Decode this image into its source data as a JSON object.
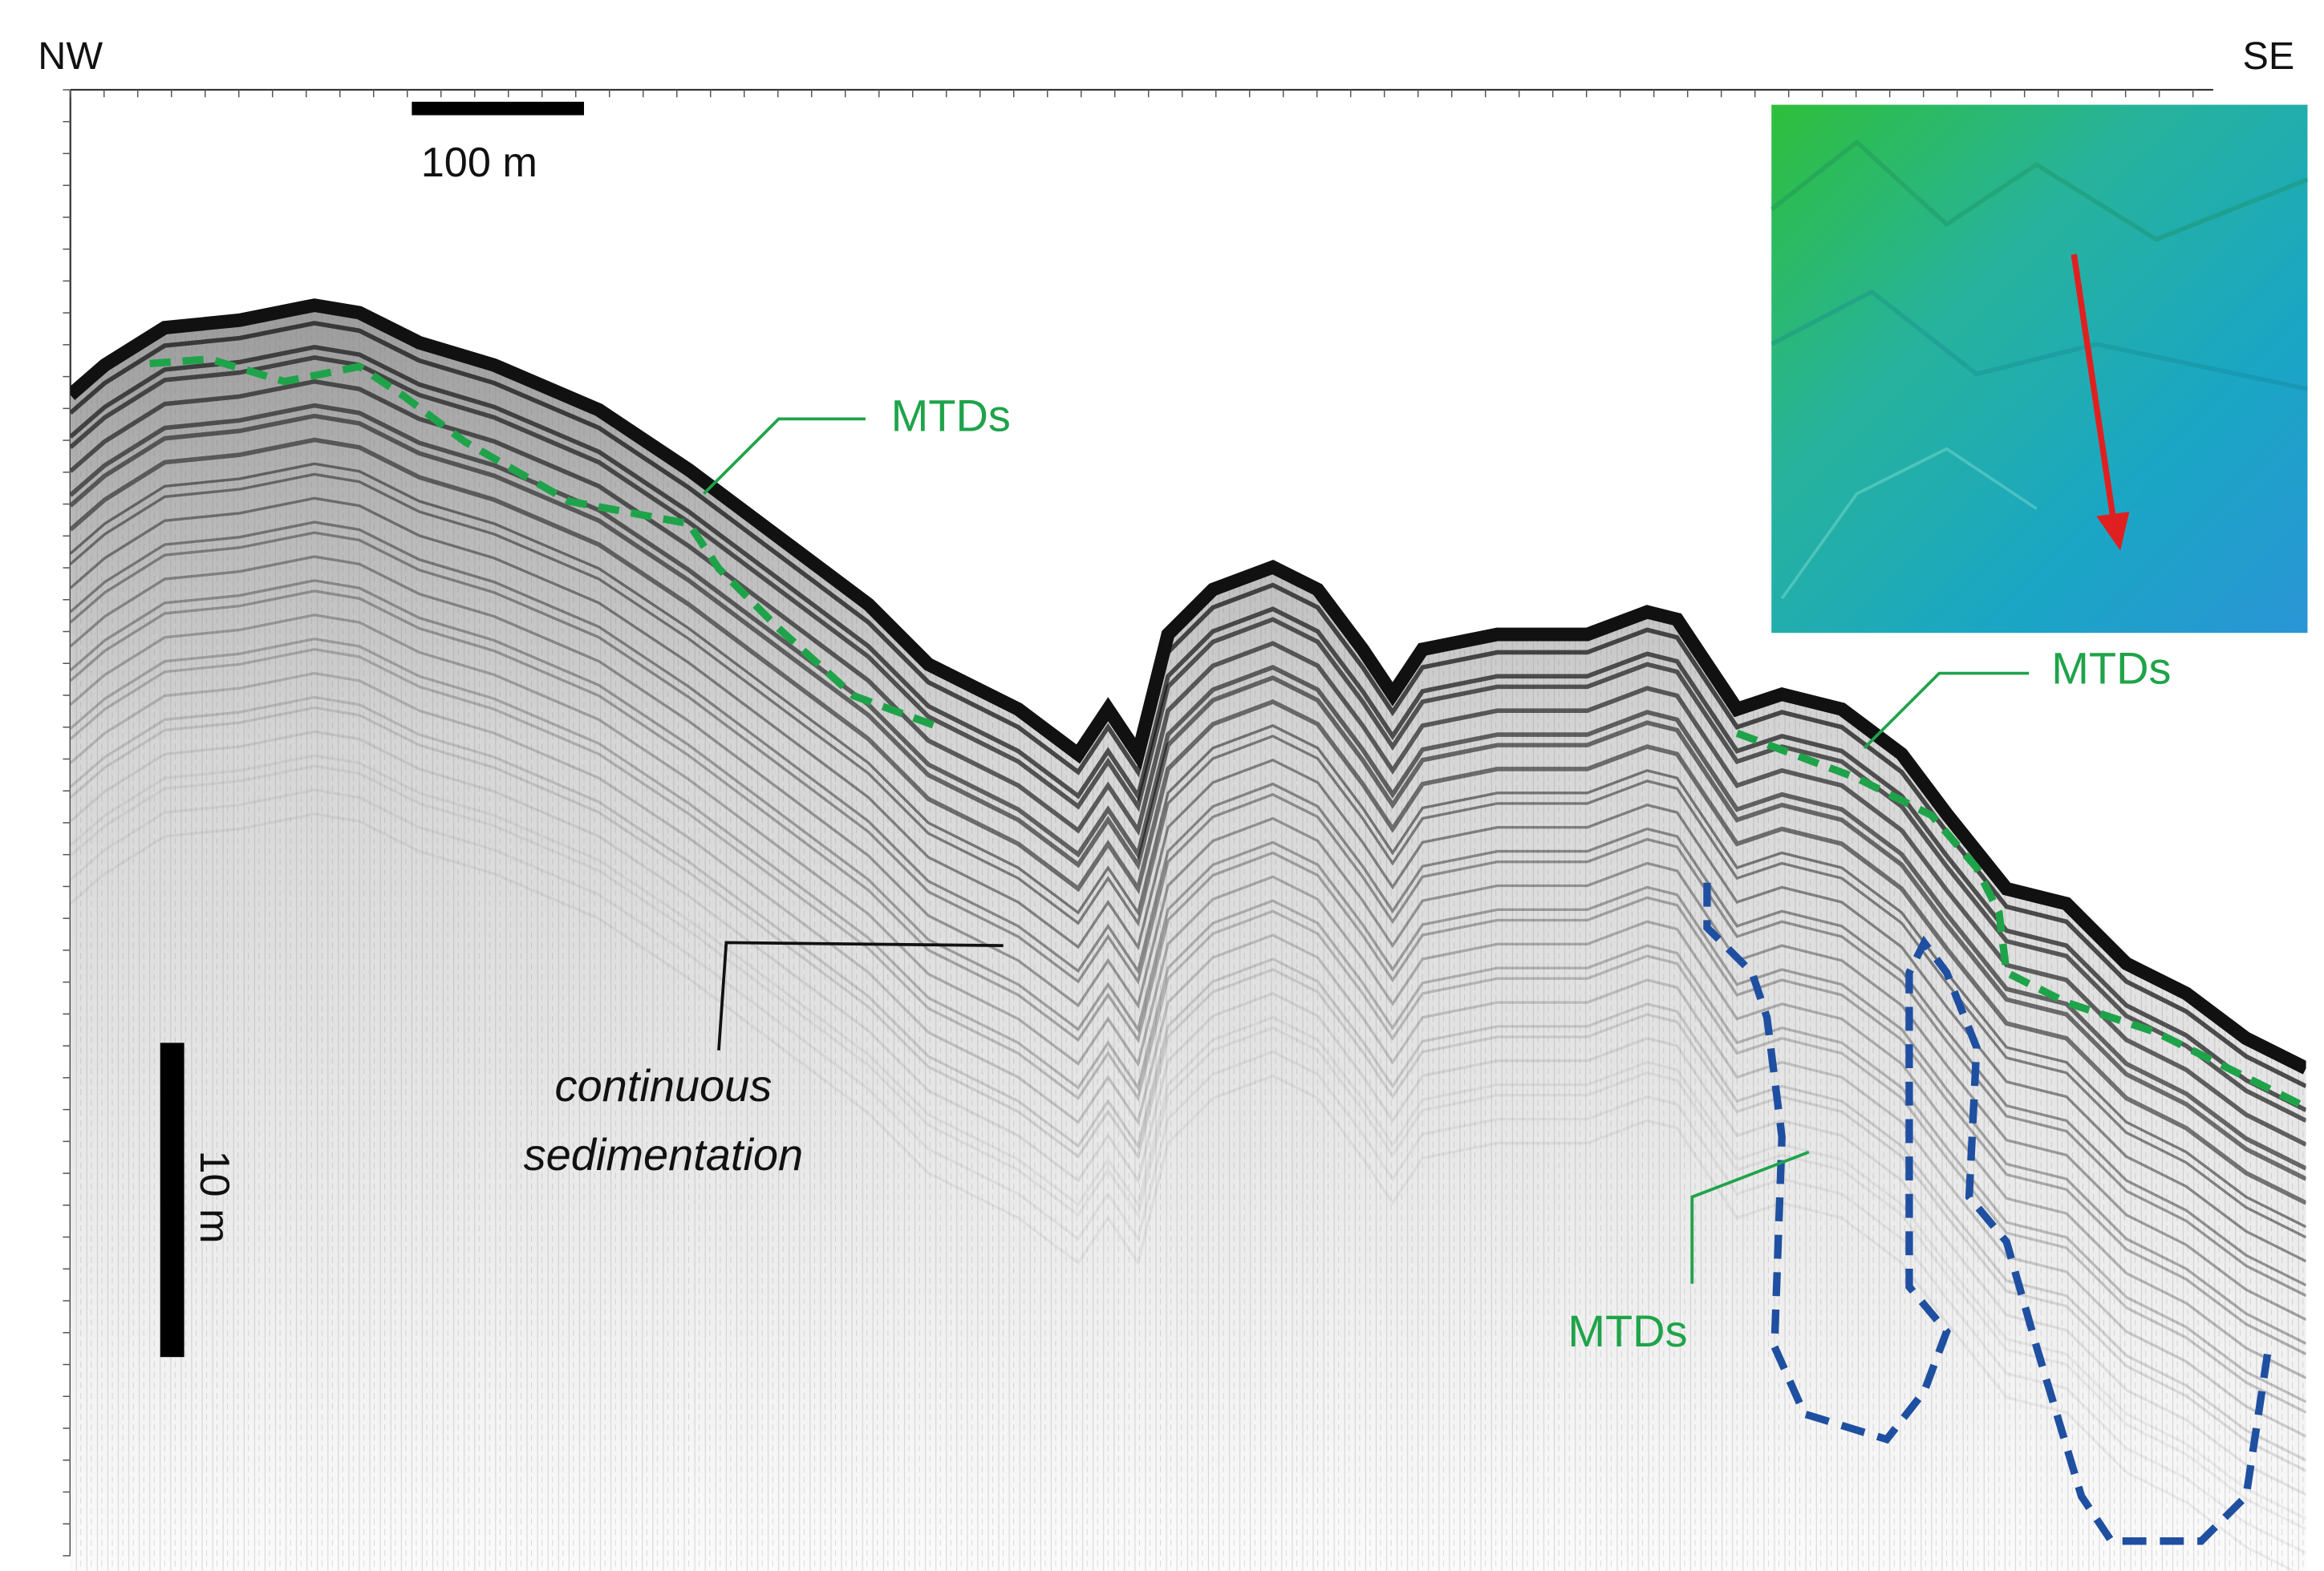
{
  "labels": {
    "nw": "NW",
    "se": "SE",
    "scale_horizontal": "100 m",
    "scale_vertical": "10 m",
    "mtds_upper": "MTDs",
    "mtds_right": "MTDs",
    "mtds_lower": "MTDs",
    "continuous_sedimentation": [
      "continuous",
      "sedimentation"
    ]
  }
}
